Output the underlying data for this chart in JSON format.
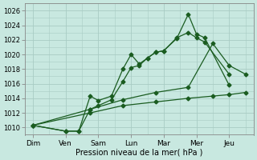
{
  "background_color": "#c8e8e0",
  "grid_color": "#a8ccc4",
  "line_color": "#1a5c20",
  "xlabel": "Pression niveau de la mer( hPa )",
  "xtick_labels": [
    "Dim",
    "Ven",
    "Sam",
    "Lun",
    "Mar",
    "Mer",
    "Jeu"
  ],
  "xtick_positions": [
    0,
    2,
    4,
    6,
    8,
    10,
    12
  ],
  "xlim": [
    -0.5,
    13.5
  ],
  "ylim": [
    1009.0,
    1027.0
  ],
  "yticks": [
    1010,
    1012,
    1014,
    1016,
    1018,
    1020,
    1022,
    1024,
    1026
  ],
  "series": [
    {
      "x": [
        0,
        2,
        2.8,
        3.5,
        4,
        4.8,
        5.5,
        6,
        6.5,
        7,
        7.5,
        8,
        8.8,
        9.5,
        10,
        10.5,
        12
      ],
      "y": [
        1010.3,
        1009.5,
        1009.5,
        1014.3,
        1013.7,
        1014.3,
        1018.0,
        1020.0,
        1018.7,
        1019.5,
        1020.3,
        1020.5,
        1022.2,
        1025.5,
        1022.8,
        1022.3,
        1015.8
      ]
    },
    {
      "x": [
        0,
        2,
        2.8,
        3.5,
        4,
        4.8,
        5.5,
        6,
        6.5,
        7,
        7.5,
        8,
        8.8,
        9.5,
        10,
        10.5,
        12
      ],
      "y": [
        1010.3,
        1009.5,
        1009.5,
        1012.5,
        1013.0,
        1013.8,
        1016.3,
        1018.2,
        1018.5,
        1019.5,
        1020.3,
        1020.5,
        1022.3,
        1023.0,
        1022.3,
        1021.7,
        1017.3
      ]
    },
    {
      "x": [
        0,
        3.5,
        5.5,
        7.5,
        9.5,
        11,
        12,
        13
      ],
      "y": [
        1010.3,
        1012.5,
        1013.8,
        1014.8,
        1015.5,
        1021.5,
        1018.5,
        1017.3
      ]
    },
    {
      "x": [
        0,
        3.5,
        5.5,
        7.5,
        9.5,
        11,
        12,
        13
      ],
      "y": [
        1010.3,
        1012.0,
        1013.0,
        1013.5,
        1014.0,
        1014.3,
        1014.5,
        1014.8
      ]
    }
  ]
}
